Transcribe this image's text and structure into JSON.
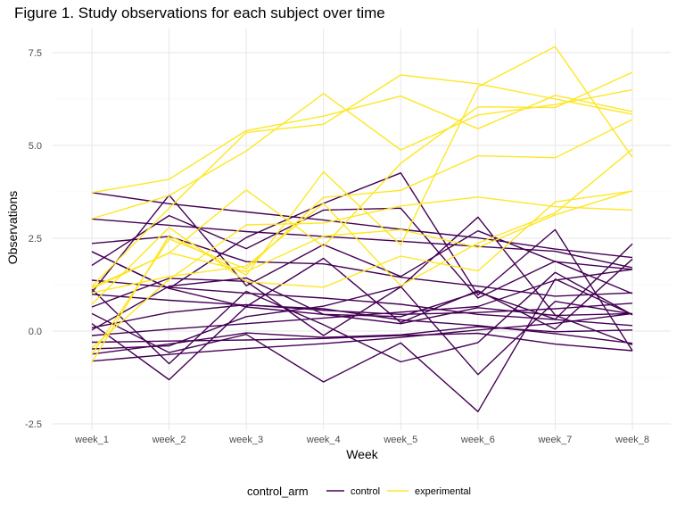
{
  "chart_data": {
    "type": "line",
    "title": "Figure 1. Study observations for each subject over time",
    "xlabel": "Week",
    "ylabel": "Observations",
    "categories": [
      "week_1",
      "week_2",
      "week_3",
      "week_4",
      "week_5",
      "week_6",
      "week_7",
      "week_8"
    ],
    "y_ticks": [
      -2.5,
      0.0,
      2.5,
      5.0,
      7.5
    ],
    "y_tick_labels": [
      "-2.5",
      "0.0",
      "2.5",
      "5.0",
      "7.5"
    ],
    "ylim": [
      -2.5,
      8.0
    ],
    "grid": true,
    "legend": {
      "title": "control_arm",
      "position": "bottom",
      "entries": [
        {
          "label": "control",
          "color": "#440154"
        },
        {
          "label": "experimental",
          "color": "#FDE725"
        }
      ]
    },
    "series": [
      {
        "group": "control",
        "values": [
          0.2,
          -1.31,
          0.66,
          1.96,
          0.23,
          1.09,
          0.05,
          1.94
        ]
      },
      {
        "group": "control",
        "values": [
          1.13,
          -0.88,
          1.07,
          0.17,
          -0.83,
          -0.31,
          1.58,
          0.44
        ]
      },
      {
        "group": "control",
        "values": [
          1.77,
          3.11,
          2.22,
          3.26,
          3.31,
          0.89,
          1.88,
          1.01
        ]
      },
      {
        "group": "control",
        "values": [
          1.04,
          3.66,
          1.22,
          2.33,
          1.47,
          2.7,
          1.87,
          1.66
        ]
      },
      {
        "group": "control",
        "values": [
          0.47,
          -0.58,
          -0.09,
          -1.37,
          -0.32,
          -2.17,
          1.4,
          0.44
        ]
      },
      {
        "group": "control",
        "values": [
          2.14,
          1.15,
          2.52,
          3.44,
          4.26,
          0.97,
          2.73,
          -0.53
        ]
      },
      {
        "group": "control",
        "values": [
          0.03,
          1.21,
          1.43,
          0.45,
          0.39,
          1.05,
          0.32,
          2.35
        ]
      },
      {
        "group": "control",
        "values": [
          -0.48,
          -0.4,
          0.39,
          0.67,
          1.2,
          -1.17,
          0.8,
          0.46
        ]
      },
      {
        "group": "control",
        "values": [
          0.65,
          1.42,
          1.34,
          -0.12,
          1.19,
          3.07,
          0.43,
          -0.37
        ]
      },
      {
        "group": "control",
        "values": [
          2.14,
          1.15,
          0.65,
          0.45,
          0.2,
          0.63,
          0.42,
          0.47
        ]
      },
      {
        "group": "control",
        "values": [
          3.73,
          3.43,
          3.21,
          2.99,
          2.74,
          2.51,
          2.21,
          1.98
        ]
      },
      {
        "group": "control",
        "values": [
          3.02,
          2.85,
          2.68,
          2.55,
          2.42,
          2.28,
          2.15,
          1.71
        ]
      },
      {
        "group": "control",
        "values": [
          -0.81,
          -0.63,
          -0.47,
          -0.34,
          -0.17,
          0.03,
          0.21,
          0.47
        ]
      },
      {
        "group": "control",
        "values": [
          -0.12,
          0.05,
          0.2,
          0.35,
          0.51,
          0.66,
          1.37,
          1.66
        ]
      },
      {
        "group": "control",
        "values": [
          -0.3,
          -0.27,
          -0.24,
          -0.2,
          -0.12,
          -0.06,
          -0.35,
          -0.53
        ]
      },
      {
        "group": "control",
        "values": [
          1.37,
          1.18,
          1.02,
          0.89,
          0.72,
          0.45,
          0.31,
          0.15
        ]
      },
      {
        "group": "control",
        "values": [
          0.99,
          0.83,
          0.7,
          0.6,
          0.3,
          0.15,
          -0.07,
          -0.33
        ]
      },
      {
        "group": "control",
        "values": [
          2.36,
          2.55,
          1.87,
          1.81,
          1.45,
          1.21,
          0.94,
          1.03
        ]
      },
      {
        "group": "control",
        "values": [
          0.09,
          0.5,
          0.71,
          0.56,
          0.45,
          0.5,
          0.6,
          0.75
        ]
      },
      {
        "group": "control",
        "values": [
          -0.62,
          -0.35,
          -0.05,
          -0.17,
          -0.1,
          0.12,
          -0.02,
          0.03
        ]
      },
      {
        "group": "experimental",
        "values": [
          3.73,
          4.09,
          5.4,
          5.79,
          6.33,
          5.45,
          6.35,
          5.91
        ]
      },
      {
        "group": "experimental",
        "values": [
          3.03,
          3.65,
          4.85,
          6.4,
          4.88,
          5.82,
          6.1,
          6.5
        ]
      },
      {
        "group": "experimental",
        "values": [
          1.2,
          3.31,
          5.35,
          5.57,
          6.9,
          6.66,
          6.25,
          5.84
        ]
      },
      {
        "group": "experimental",
        "values": [
          -0.84,
          2.58,
          1.51,
          4.29,
          2.32,
          6.58,
          7.66,
          4.68
        ]
      },
      {
        "group": "experimental",
        "values": [
          -0.63,
          2.48,
          1.67,
          3.6,
          3.79,
          4.72,
          4.67,
          5.7
        ]
      },
      {
        "group": "experimental",
        "values": [
          1.18,
          2.1,
          3.8,
          2.28,
          4.52,
          6.04,
          6.02,
          6.97
        ]
      },
      {
        "group": "experimental",
        "values": [
          1.03,
          1.47,
          1.75,
          3.44,
          1.22,
          2.37,
          3.18,
          4.9
        ]
      },
      {
        "group": "experimental",
        "values": [
          -0.46,
          1.39,
          2.86,
          2.91,
          3.37,
          3.61,
          3.35,
          3.26
        ]
      },
      {
        "group": "experimental",
        "values": [
          0.72,
          2.79,
          1.33,
          1.18,
          2.02,
          1.62,
          3.48,
          3.77
        ]
      },
      {
        "group": "experimental",
        "values": [
          1.14,
          2.11,
          1.6,
          2.56,
          2.73,
          2.25,
          3.13,
          3.78
        ]
      }
    ]
  }
}
